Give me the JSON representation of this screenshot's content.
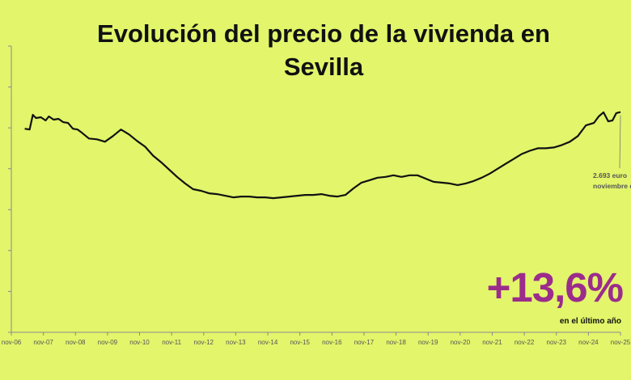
{
  "chart_data": {
    "type": "line",
    "title_lines": [
      "Evolución del precio de la vivienda en",
      "Sevilla"
    ],
    "xlabel": "",
    "ylabel": "",
    "x_tick_labels": [
      "nov-06",
      "nov-07",
      "nov-08",
      "nov-09",
      "nov-10",
      "nov-11",
      "nov-12",
      "nov-13",
      "nov-14",
      "nov-15",
      "nov-16",
      "nov-17",
      "nov-18",
      "nov-19",
      "nov-20",
      "nov-21",
      "nov-22",
      "nov-23",
      "nov-24",
      "nov-25"
    ],
    "ylim": [
      0,
      3500
    ],
    "grid": false,
    "series": [
      {
        "color": "#111111",
        "x": [
          2007.25,
          2007.4,
          2007.5,
          2007.6,
          2007.75,
          2007.9,
          2008.0,
          2008.15,
          2008.3,
          2008.45,
          2008.6,
          2008.75,
          2008.9,
          2009.0,
          2009.25,
          2009.5,
          2009.75,
          2010.0,
          2010.25,
          2010.5,
          2010.75,
          2011.0,
          2011.25,
          2011.5,
          2011.75,
          2012.0,
          2012.25,
          2012.5,
          2012.75,
          2013.0,
          2013.25,
          2013.5,
          2013.75,
          2014.0,
          2014.25,
          2014.5,
          2014.75,
          2015.0,
          2015.25,
          2015.5,
          2015.75,
          2016.0,
          2016.25,
          2016.5,
          2016.75,
          2017.0,
          2017.25,
          2017.5,
          2017.75,
          2018.0,
          2018.25,
          2018.5,
          2018.75,
          2019.0,
          2019.25,
          2019.5,
          2019.75,
          2020.0,
          2020.25,
          2020.5,
          2020.75,
          2021.0,
          2021.25,
          2021.5,
          2021.75,
          2022.0,
          2022.25,
          2022.5,
          2022.75,
          2023.0,
          2023.25,
          2023.5,
          2023.75,
          2024.0,
          2024.25,
          2024.5,
          2024.75,
          2025.0,
          2025.15,
          2025.3,
          2025.45,
          2025.58,
          2025.7,
          2025.83
        ],
        "y": [
          2490,
          2480,
          2660,
          2620,
          2630,
          2590,
          2640,
          2600,
          2610,
          2570,
          2560,
          2490,
          2480,
          2450,
          2370,
          2360,
          2330,
          2400,
          2480,
          2420,
          2340,
          2270,
          2160,
          2080,
          1990,
          1900,
          1820,
          1750,
          1730,
          1700,
          1690,
          1670,
          1650,
          1660,
          1660,
          1650,
          1650,
          1640,
          1650,
          1660,
          1670,
          1680,
          1680,
          1690,
          1670,
          1660,
          1680,
          1760,
          1830,
          1860,
          1890,
          1900,
          1920,
          1900,
          1920,
          1920,
          1880,
          1840,
          1830,
          1820,
          1800,
          1820,
          1850,
          1890,
          1940,
          2000,
          2060,
          2120,
          2180,
          2220,
          2250,
          2250,
          2260,
          2290,
          2330,
          2400,
          2530,
          2560,
          2640,
          2690,
          2580,
          2590,
          2680,
          2693
        ]
      }
    ],
    "annotations": {
      "callout_price": "2.693 euro",
      "callout_date": "noviembre d",
      "big_stat": "+13,6%",
      "big_stat_caption": "en el último año",
      "big_stat_color": "#9b2c8c"
    }
  }
}
